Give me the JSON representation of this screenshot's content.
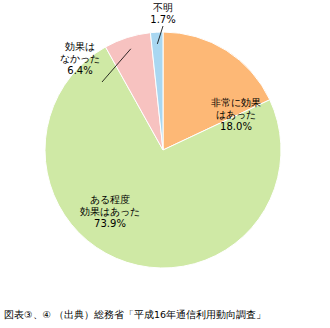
{
  "chart_data": {
    "type": "pie",
    "categories": [
      "非常に効果\nはあった",
      "ある程度\n効果はあった",
      "効果は\nなかった",
      "不明"
    ],
    "values": [
      18.0,
      73.9,
      6.4,
      1.7
    ],
    "value_labels": [
      "18.0%",
      "73.9%",
      "6.4%",
      "1.7%"
    ],
    "colors": [
      "#fdb876",
      "#cfe9a5",
      "#f7c2c0",
      "#a9d7f1"
    ],
    "data_labels": true,
    "caption": "図表③、④ （出典）総務省「平成16年通信利用動向調査」"
  }
}
